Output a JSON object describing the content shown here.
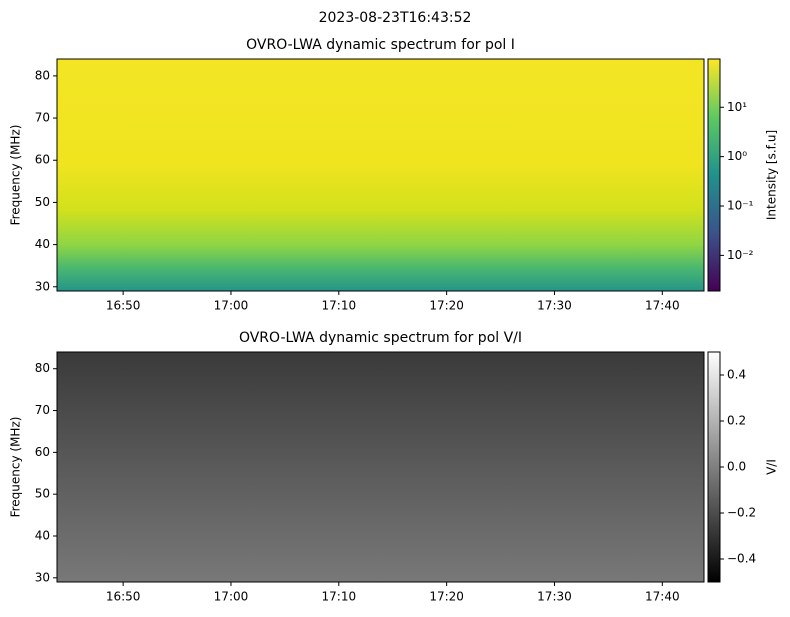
{
  "title": "2023-08-23T16:43:52",
  "chart_data": [
    {
      "type": "heatmap",
      "title": "OVRO-LWA dynamic spectrum for pol I",
      "ylabel": "Frequency (MHz)",
      "xlim": [
        "16:43:52",
        "17:43:52"
      ],
      "xticks": [
        "16:50",
        "17:00",
        "17:10",
        "17:20",
        "17:30",
        "17:40"
      ],
      "ylim": [
        29,
        84
      ],
      "yticks": [
        30,
        40,
        50,
        60,
        70,
        80
      ],
      "colormap": "viridis",
      "colorbar": {
        "label": "Intensity [s.f.u]",
        "scale": "log",
        "lim": [
          0.0019,
          95
        ],
        "ticks": [
          {
            "value": 0.01,
            "label": "10⁻²"
          },
          {
            "value": 0.1,
            "label": "10⁻¹"
          },
          {
            "value": 1,
            "label": "10⁰"
          },
          {
            "value": 10,
            "label": "10¹"
          }
        ]
      }
    },
    {
      "type": "heatmap",
      "title": "OVRO-LWA dynamic spectrum for pol V/I",
      "ylabel": "Frequency (MHz)",
      "xlim": [
        "16:43:52",
        "17:43:52"
      ],
      "xticks": [
        "16:50",
        "17:00",
        "17:10",
        "17:20",
        "17:30",
        "17:40"
      ],
      "ylim": [
        29,
        84
      ],
      "yticks": [
        30,
        40,
        50,
        60,
        70,
        80
      ],
      "colormap": "gray",
      "colorbar": {
        "label": "V/I",
        "scale": "linear",
        "lim": [
          -0.5,
          0.5
        ],
        "ticks": [
          {
            "value": -0.4,
            "label": "−0.4"
          },
          {
            "value": -0.2,
            "label": "−0.2"
          },
          {
            "value": 0,
            "label": "0.0"
          },
          0.2,
          0.4
        ]
      }
    }
  ]
}
